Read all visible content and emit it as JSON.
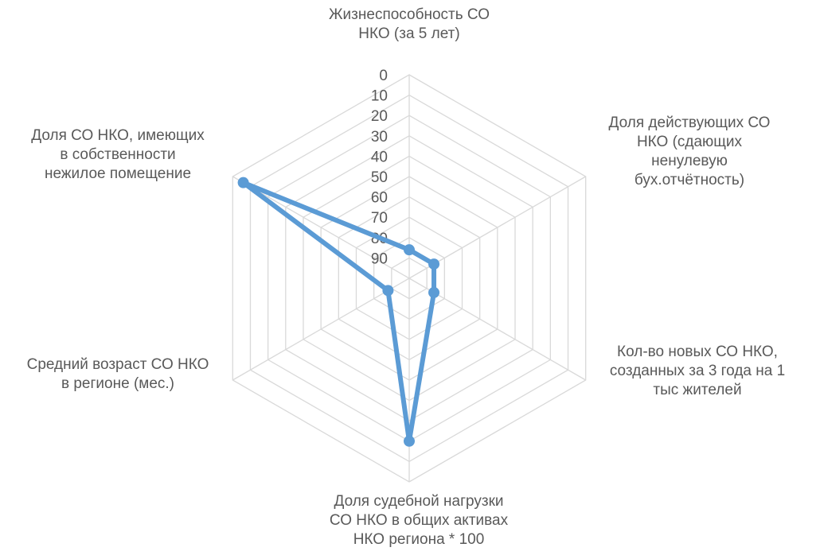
{
  "chart_data": {
    "type": "radar",
    "title": "",
    "reversed_scale": true,
    "range": [
      0,
      100
    ],
    "ticks": [
      0,
      10,
      20,
      30,
      40,
      50,
      60,
      70,
      80,
      90
    ],
    "tick_labels": [
      "0",
      "10",
      "20",
      "30",
      "40",
      "50",
      "60",
      "70",
      "80",
      "90"
    ],
    "categories": [
      [
        "Жизнеспособность СО",
        "НКО (за 5 лет)"
      ],
      [
        "Доля действующих СО",
        "НКО (сдающих",
        "ненулевую",
        "бух.отчётность)"
      ],
      [
        "Кол-во новых СО НКО,",
        "созданных за 3 года на 1",
        "тыс жителей"
      ],
      [
        "Доля судебной нагрузки",
        "СО НКО в общих активах",
        "НКО региона * 100"
      ],
      [
        "Средний возраст СО НКО",
        "в регионе (мес.)"
      ],
      [
        "Доля СО НКО, имеющих",
        "в собственности",
        "нежилое помещение"
      ]
    ],
    "series": [
      {
        "values": [
          86,
          86,
          86,
          20,
          88,
          6
        ],
        "color": "#5B9BD5"
      }
    ],
    "grid": true,
    "grid_color": "#D9D9D9",
    "legend": "none"
  }
}
